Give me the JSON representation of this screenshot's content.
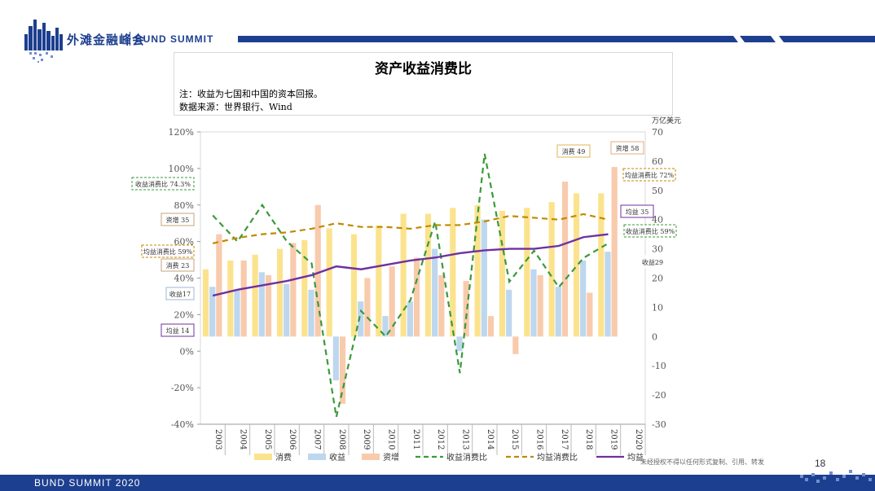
{
  "brand": {
    "cn": "外滩金融峰会",
    "en": "BUND SUMMIT"
  },
  "chart_box": {
    "title": "资产收益消费比",
    "note": "注：收益为七国和中国的资本回报。",
    "source": "数据来源：世界银行、Wind"
  },
  "footer": {
    "event": "BUND SUMMIT 2020",
    "page": "18",
    "copyright": "未经授权不得以任何形式复制、引用、转发"
  },
  "colors": {
    "brand_blue": "#1d3f8f",
    "consumption": "#fbe38e",
    "income": "#bdd7ee",
    "asset_increase": "#f8cbad",
    "income_consumption_ratio": "#3a9a3a",
    "avg_ratio": "#c08a00",
    "avg_income": "#7030a0"
  },
  "chart_data": {
    "type": "bar",
    "categories": [
      "2003",
      "2004",
      "2005",
      "2006",
      "2007",
      "2008",
      "2009",
      "2010",
      "2011",
      "2012",
      "2013",
      "2014",
      "2015",
      "2016",
      "2017",
      "2018",
      "2019",
      "2020"
    ],
    "left_axis": {
      "ticks": [
        "120%",
        "100%",
        "80%",
        "60%",
        "40%",
        "20%",
        "0%",
        "-20%",
        "-40%"
      ],
      "ylim": [
        -40,
        120
      ]
    },
    "right_axis": {
      "unit": "万亿美元",
      "ticks": [
        "70",
        "60",
        "50",
        "40",
        "30",
        "20",
        "10",
        "0",
        "-10",
        "-20",
        "-30"
      ],
      "ylim": [
        -30,
        70
      ]
    },
    "bar_series": [
      {
        "name": "消费",
        "axis": "right",
        "values": [
          23,
          26,
          28,
          30,
          33,
          37,
          35,
          38,
          42,
          42,
          44,
          45,
          43,
          44,
          46,
          49,
          49,
          null
        ]
      },
      {
        "name": "收益",
        "axis": "right",
        "values": [
          17,
          16,
          22,
          18,
          16,
          -15,
          12,
          7,
          12,
          30,
          -5,
          40,
          16,
          23,
          17,
          26,
          29,
          null
        ]
      },
      {
        "name": "资增",
        "axis": "right",
        "values": [
          35,
          26,
          21,
          32,
          45,
          -23,
          20,
          24,
          27,
          21,
          19,
          7,
          -6,
          21,
          53,
          15,
          58,
          null
        ]
      }
    ],
    "line_series": [
      {
        "name": "收益消费比",
        "axis": "left",
        "values": [
          74.3,
          60,
          80,
          60,
          48,
          -36,
          22,
          8,
          28,
          71,
          -12,
          108,
          38,
          55,
          35,
          51,
          59,
          null
        ],
        "style": "dashed"
      },
      {
        "name": "均益消费比",
        "axis": "left",
        "values": [
          59,
          62,
          64,
          65,
          67,
          70,
          68,
          68,
          67,
          69,
          69,
          71,
          74,
          73,
          72,
          75,
          72,
          null
        ],
        "style": "dashed"
      },
      {
        "name": "均益",
        "axis": "right",
        "values": [
          14,
          16,
          17.5,
          19,
          21,
          24,
          23,
          24.5,
          26,
          27,
          28.5,
          29.5,
          30,
          30,
          31,
          34,
          35,
          null
        ],
        "style": "solid"
      }
    ],
    "legend": [
      "消费",
      "收益",
      "资增",
      "收益消费比",
      "均益消费比",
      "均益"
    ],
    "legend_position": "bottom",
    "annotations": {
      "left": [
        "收益消费比 74.3%",
        "资增 35",
        "均益消费比 59%",
        "消费 23",
        "收益17",
        "均益 14"
      ],
      "right": [
        "消费 49",
        "资增 58",
        "均益消费比 72%",
        "均益 35",
        "收益消费比 59%",
        "收益29"
      ]
    }
  }
}
